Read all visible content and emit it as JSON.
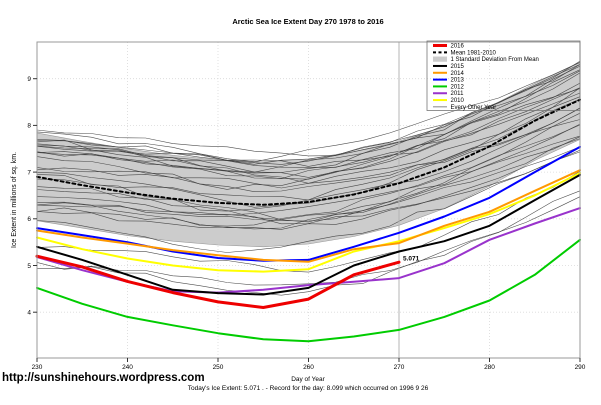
{
  "title": "Arctic Sea Ice Extent Day 270 1978 to 2016",
  "ylabel": "Ice Extent in millions of sq. km.",
  "xlabel": "Day of Year",
  "caption": "Today's Ice Extent: 5.071 . - Record for the day: 8.099 which occurred on 1996 9 26",
  "footer_url": "http://sunshinehours.wordpress.com",
  "annotation": {
    "text": "5.071",
    "day": 270,
    "value": 5.071,
    "color": "#ff0000"
  },
  "axes": {
    "x_ticks": [
      230,
      240,
      250,
      260,
      270,
      280,
      290
    ],
    "y_ticks": [
      4,
      5,
      6,
      7,
      8,
      9
    ],
    "x_range": [
      230,
      290
    ],
    "grid_color": "#d9d9d9",
    "frame_color": "#999999",
    "marker_line_day": 270,
    "marker_line_color": "#b4b4b4"
  },
  "legend": {
    "items": [
      {
        "label": "2016",
        "color": "#ee0000",
        "style": "thick-line"
      },
      {
        "label": "Mean 1981-2010",
        "color": "#000000",
        "style": "dashed-line"
      },
      {
        "label": "1 Standard Deviation From Mean",
        "color": "#cccccc",
        "style": "patch"
      },
      {
        "label": "2015",
        "color": "#000000",
        "style": "line"
      },
      {
        "label": "2014",
        "color": "#ff9900",
        "style": "line"
      },
      {
        "label": "2013",
        "color": "#0000ff",
        "style": "line"
      },
      {
        "label": "2012",
        "color": "#00cc00",
        "style": "line"
      },
      {
        "label": "2011",
        "color": "#9933cc",
        "style": "line"
      },
      {
        "label": "2010",
        "color": "#ffff00",
        "style": "line"
      },
      {
        "label": "Every Other Year",
        "color": "#555555",
        "style": "thin-line"
      }
    ]
  },
  "chart_data": {
    "type": "line",
    "title": "Arctic Sea Ice Extent Day 270 1978 to 2016",
    "xlabel": "Day of Year",
    "ylabel": "Ice Extent in millions of sq. km.",
    "x": [
      230,
      235,
      240,
      245,
      250,
      255,
      260,
      265,
      270,
      275,
      280,
      285,
      290
    ],
    "ylim": [
      3.0,
      9.8
    ],
    "grid": true,
    "legend_position": "top-right",
    "series": [
      {
        "name": "2010",
        "color": "#ffff00",
        "width": 2,
        "dash": null,
        "values": [
          5.6,
          5.35,
          5.15,
          5.0,
          4.9,
          4.87,
          4.92,
          5.3,
          5.52,
          5.8,
          6.1,
          6.5,
          6.98
        ]
      },
      {
        "name": "2011",
        "color": "#9933cc",
        "width": 2,
        "dash": null,
        "values": [
          5.18,
          4.9,
          4.65,
          4.45,
          4.42,
          4.48,
          4.58,
          4.65,
          4.73,
          5.05,
          5.55,
          5.9,
          6.23
        ]
      },
      {
        "name": "2012",
        "color": "#00cc00",
        "width": 2,
        "dash": null,
        "values": [
          4.52,
          4.18,
          3.9,
          3.72,
          3.55,
          3.42,
          3.38,
          3.48,
          3.62,
          3.9,
          4.25,
          4.8,
          5.55
        ]
      },
      {
        "name": "2013",
        "color": "#0000ff",
        "width": 2,
        "dash": null,
        "values": [
          5.8,
          5.65,
          5.5,
          5.3,
          5.16,
          5.1,
          5.12,
          5.4,
          5.7,
          6.05,
          6.45,
          7.0,
          7.54
        ]
      },
      {
        "name": "2014",
        "color": "#ff9900",
        "width": 2,
        "dash": null,
        "values": [
          5.75,
          5.6,
          5.47,
          5.33,
          5.22,
          5.12,
          5.08,
          5.35,
          5.48,
          5.85,
          6.15,
          6.6,
          7.04
        ]
      },
      {
        "name": "Mean 1981-2010",
        "color": "#000000",
        "width": 2,
        "dash": "3,3",
        "values": [
          6.9,
          6.72,
          6.56,
          6.43,
          6.34,
          6.3,
          6.36,
          6.52,
          6.76,
          7.1,
          7.55,
          8.1,
          8.55
        ]
      },
      {
        "name": "2015",
        "color": "#000000",
        "width": 2,
        "dash": null,
        "values": [
          5.4,
          5.12,
          4.8,
          4.48,
          4.41,
          4.38,
          4.52,
          5.0,
          5.3,
          5.52,
          5.85,
          6.4,
          6.94
        ]
      },
      {
        "name": "2016",
        "color": "#ee0000",
        "width": 3,
        "dash": null,
        "values": [
          5.2,
          4.97,
          4.66,
          4.42,
          4.22,
          4.1,
          4.28,
          4.8,
          5.071,
          null,
          null,
          null,
          null
        ]
      }
    ],
    "band": {
      "label": "1 Standard Deviation From Mean",
      "color": "#cccccc",
      "edge_color": "#999999",
      "top": [
        7.84,
        7.66,
        7.5,
        7.36,
        7.26,
        7.22,
        7.28,
        7.44,
        7.66,
        7.98,
        8.4,
        8.9,
        9.35
      ],
      "bottom": [
        5.96,
        5.8,
        5.64,
        5.52,
        5.44,
        5.4,
        5.46,
        5.62,
        5.86,
        6.22,
        6.7,
        7.25,
        7.7
      ]
    },
    "other_years": {
      "label": "Every Other Year",
      "note": "thin unlabeled year lines 1978-2009; individual values not readable, envelope approximated",
      "color": "#3c3c3c",
      "line_count": 30,
      "low_count": 3,
      "start_range": [
        5.0,
        7.9
      ],
      "end_range": [
        6.2,
        9.4
      ],
      "seed": 42
    }
  }
}
